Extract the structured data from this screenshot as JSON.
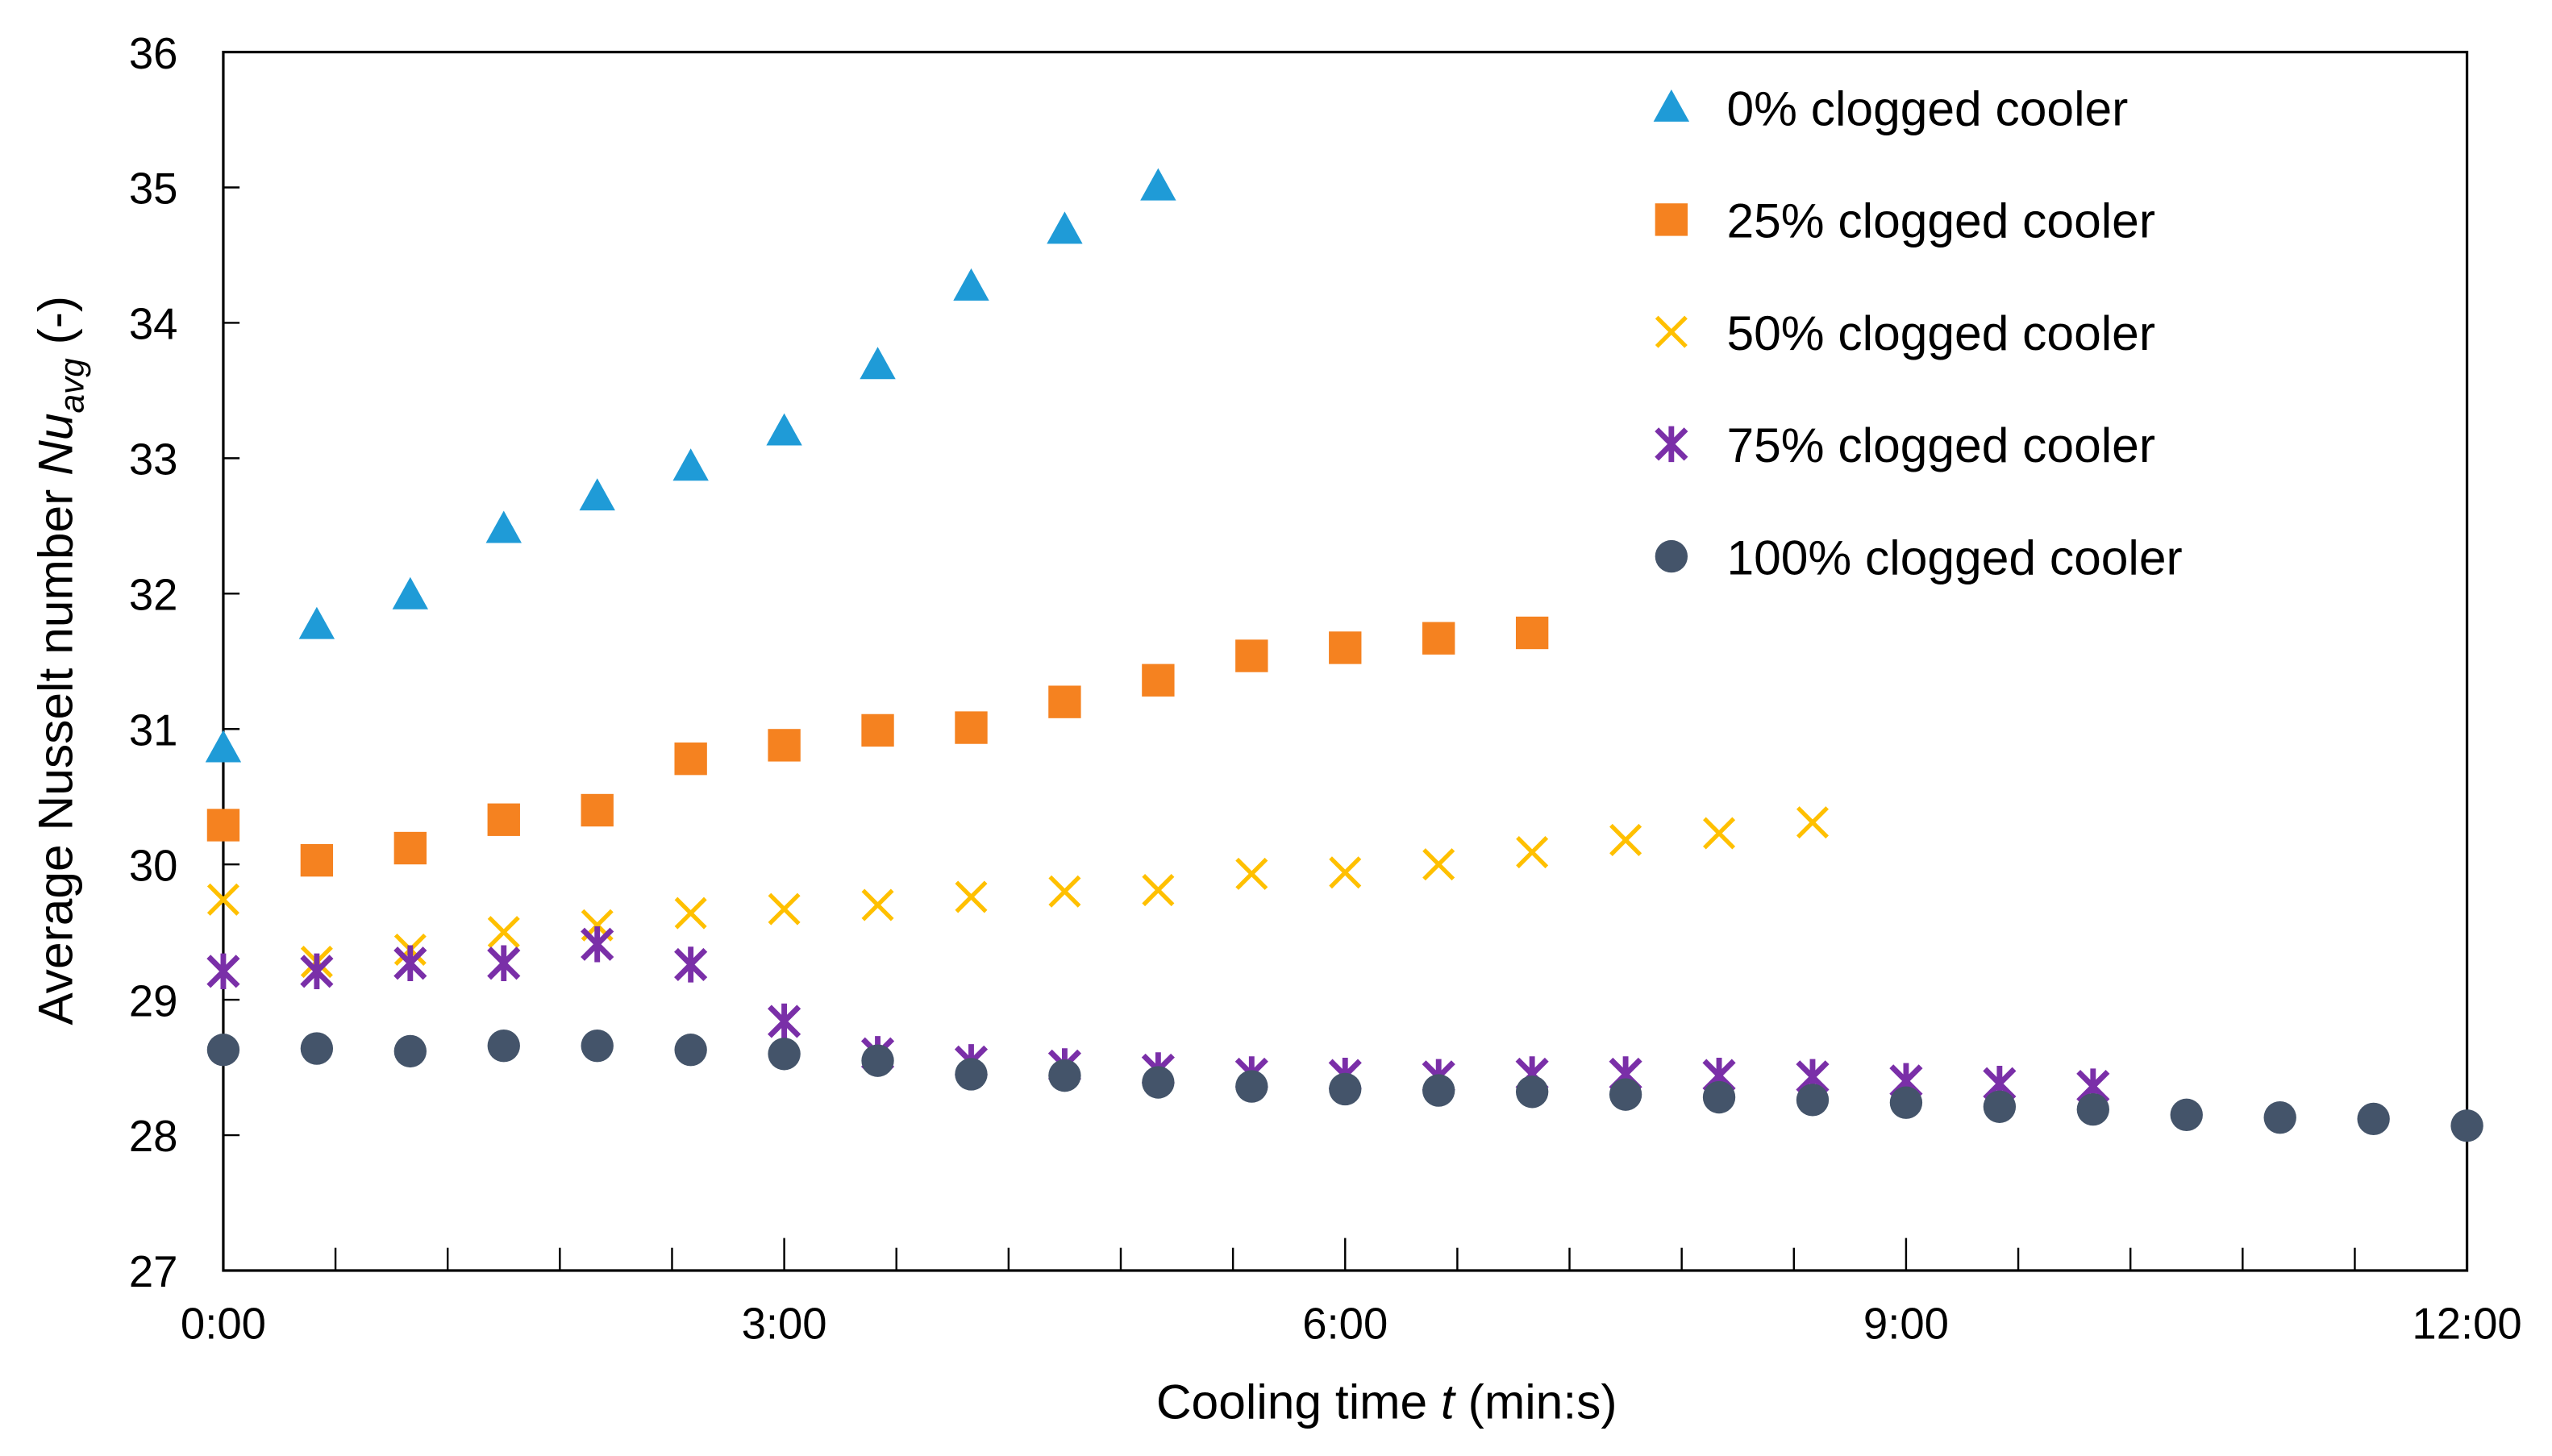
{
  "chart_data": {
    "type": "scatter",
    "title": "",
    "xlabel": {
      "prefix": "Cooling time ",
      "italic": "t",
      "suffix": " (min:s)"
    },
    "ylabel": {
      "prefix": "Average Nusselt number ",
      "italic": "Nu",
      "sub": "avg",
      "suffix": " (-)"
    },
    "x_unit": "seconds",
    "xlim": [
      0,
      720
    ],
    "ylim": [
      27,
      36
    ],
    "x_ticks": [
      {
        "v": 0,
        "label": "0:00"
      },
      {
        "v": 180,
        "label": "3:00"
      },
      {
        "v": 360,
        "label": "6:00"
      },
      {
        "v": 540,
        "label": "9:00"
      },
      {
        "v": 720,
        "label": "12:00"
      }
    ],
    "x_minor_step": 36,
    "y_ticks": [
      27,
      28,
      29,
      30,
      31,
      32,
      33,
      34,
      35,
      36
    ],
    "grid": false,
    "legend_position": "top-right",
    "x_step": 30,
    "series": [
      {
        "name": "0% clogged cooler",
        "marker": "triangle",
        "color": "#1f9bd7",
        "values": [
          30.86,
          31.77,
          31.99,
          32.48,
          32.72,
          32.94,
          33.2,
          33.69,
          34.27,
          34.69,
          35.01
        ]
      },
      {
        "name": "25% clogged cooler",
        "marker": "square",
        "color": "#f58220",
        "values": [
          30.29,
          30.03,
          30.12,
          30.33,
          30.4,
          30.78,
          30.88,
          30.99,
          31.01,
          31.2,
          31.36,
          31.54,
          31.6,
          31.67,
          31.71
        ]
      },
      {
        "name": "50% clogged cooler",
        "marker": "x",
        "color": "#ffc000",
        "values": [
          29.74,
          29.28,
          29.37,
          29.5,
          29.55,
          29.64,
          29.67,
          29.7,
          29.76,
          29.8,
          29.81,
          29.93,
          29.94,
          30.0,
          30.09,
          30.18,
          30.23,
          30.31
        ]
      },
      {
        "name": "75% clogged cooler",
        "marker": "star",
        "color": "#7a2fa8",
        "values": [
          29.21,
          29.21,
          29.27,
          29.27,
          29.41,
          29.26,
          28.84,
          28.6,
          28.54,
          28.51,
          28.48,
          28.45,
          28.44,
          28.43,
          28.45,
          28.45,
          28.44,
          28.43,
          28.4,
          28.38,
          28.36
        ]
      },
      {
        "name": "100% clogged cooler",
        "marker": "circle",
        "color": "#44546a",
        "values": [
          28.63,
          28.64,
          28.62,
          28.66,
          28.66,
          28.63,
          28.6,
          28.55,
          28.45,
          28.44,
          28.39,
          28.36,
          28.34,
          28.33,
          28.32,
          28.3,
          28.28,
          28.26,
          28.24,
          28.21,
          28.19,
          28.15,
          28.13,
          28.12,
          28.07
        ]
      }
    ]
  }
}
